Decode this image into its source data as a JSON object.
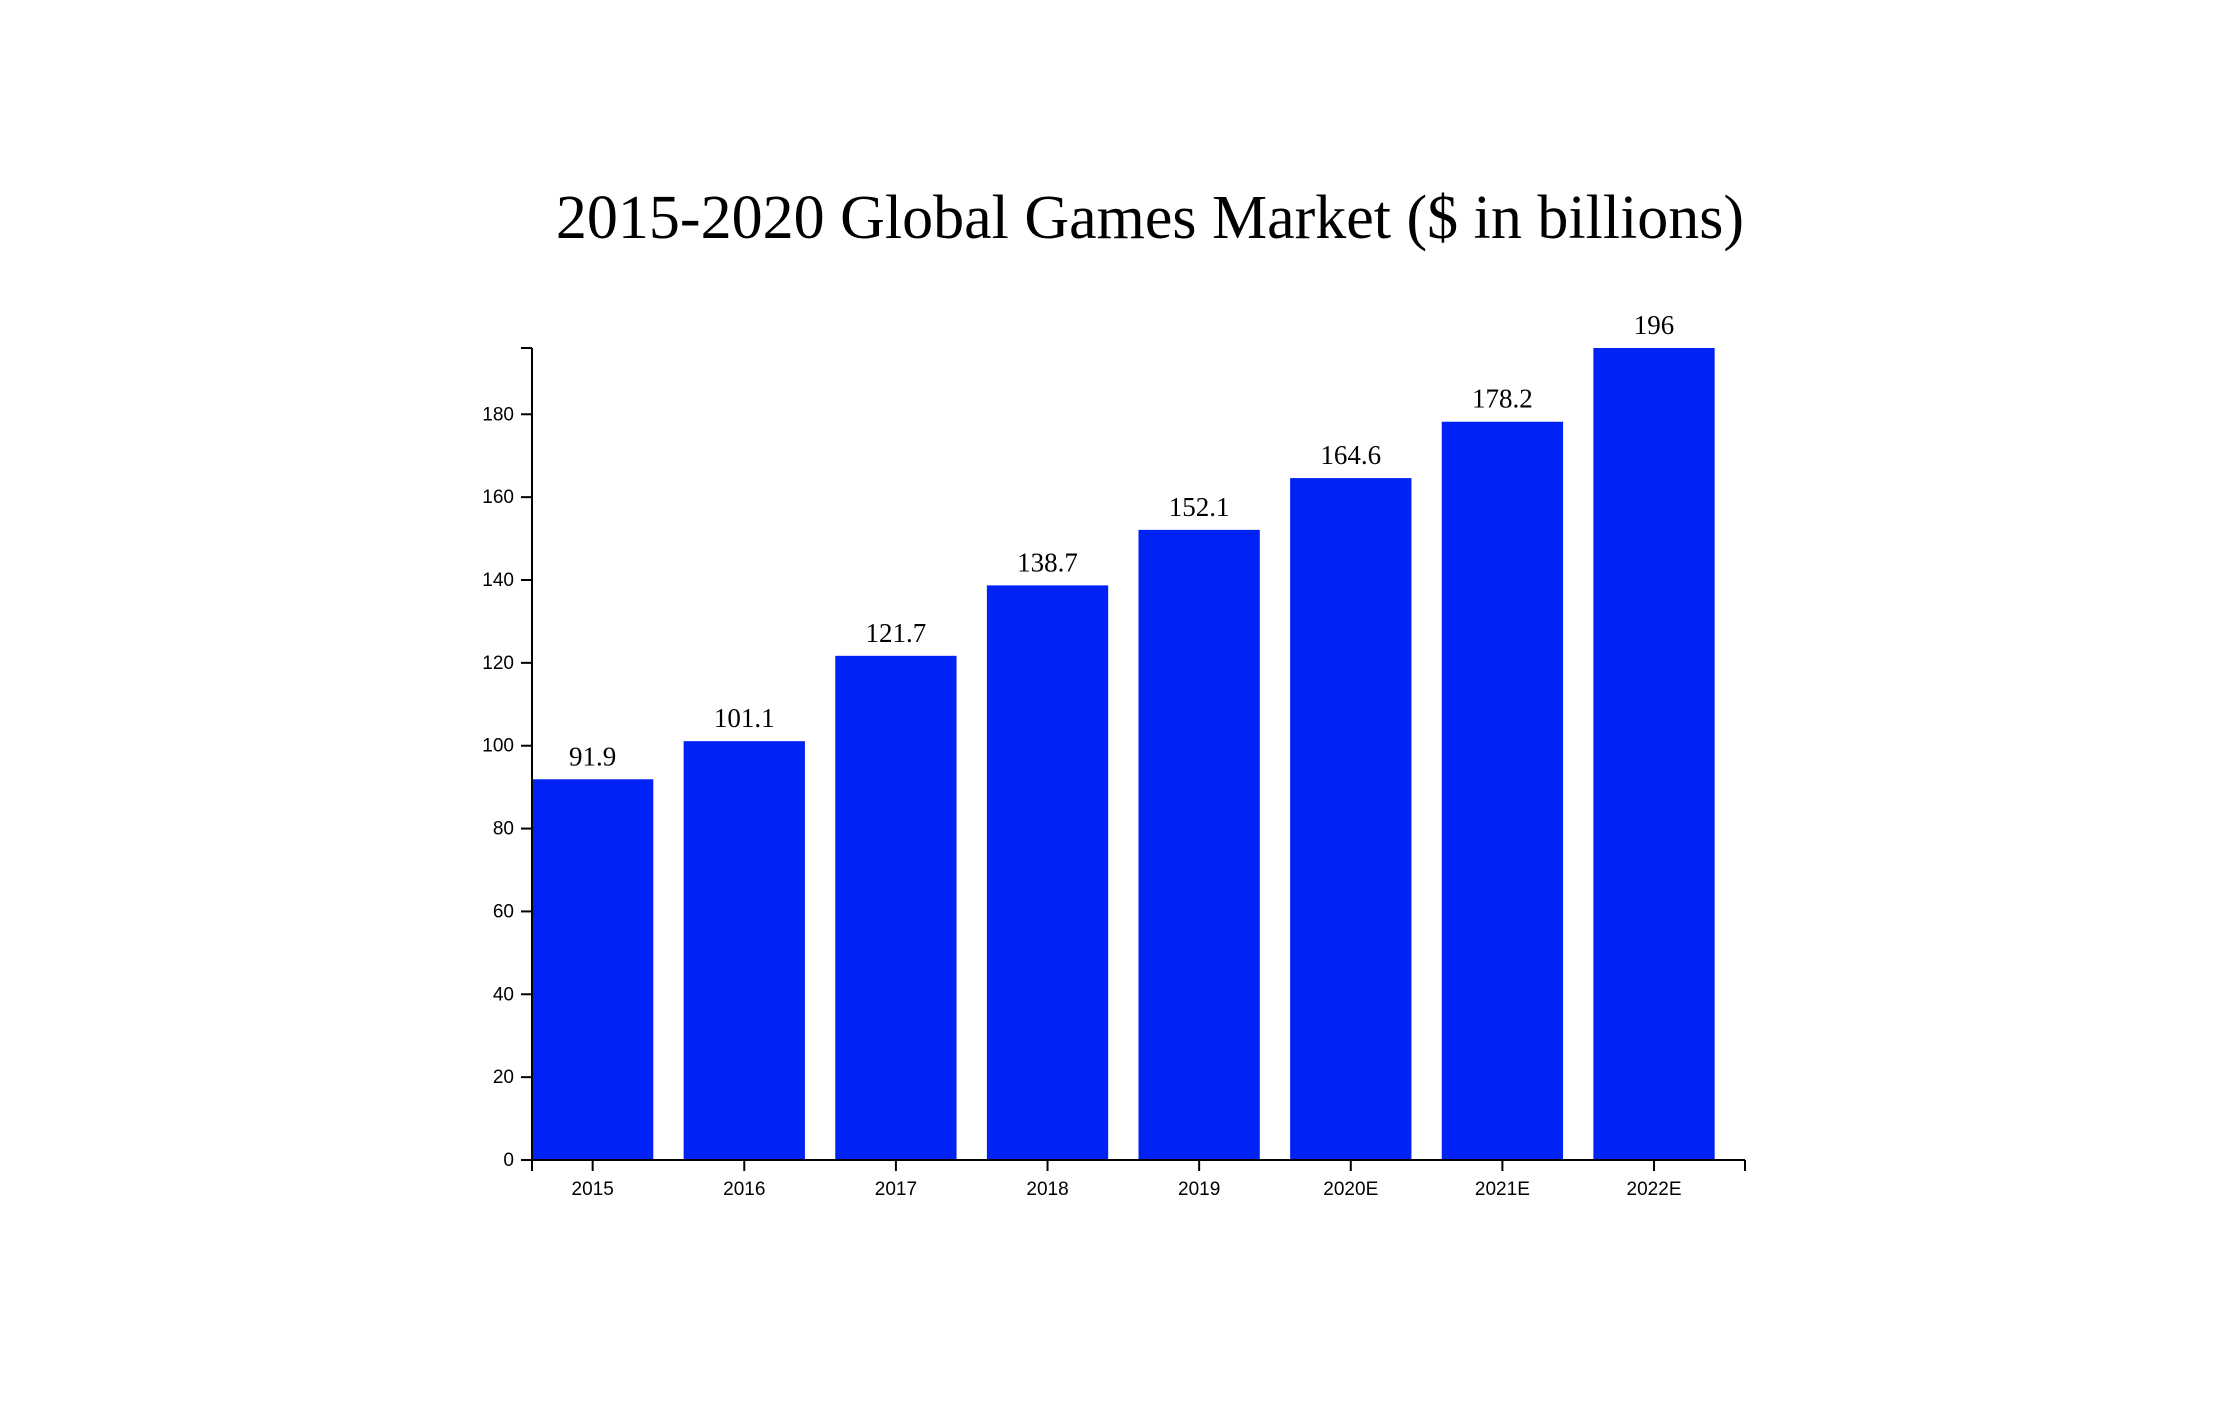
{
  "chart_data": {
    "type": "bar",
    "title": "2015-2020 Global Games Market ($ in billions)",
    "xlabel": "",
    "ylabel": "",
    "categories": [
      "2015",
      "2016",
      "2017",
      "2018",
      "2019",
      "2020E",
      "2021E",
      "2022E"
    ],
    "values": [
      91.9,
      101.1,
      121.7,
      138.7,
      152.1,
      164.6,
      178.2,
      196
    ],
    "data_labels": [
      "91.9",
      "101.1",
      "121.7",
      "138.7",
      "152.1",
      "164.6",
      "178.2",
      "196"
    ],
    "yticks": [
      0,
      20,
      40,
      60,
      80,
      100,
      120,
      140,
      160,
      180
    ],
    "ylim": [
      0,
      196
    ],
    "grid": false,
    "legend": "none",
    "bar_color": "#0022f5"
  }
}
